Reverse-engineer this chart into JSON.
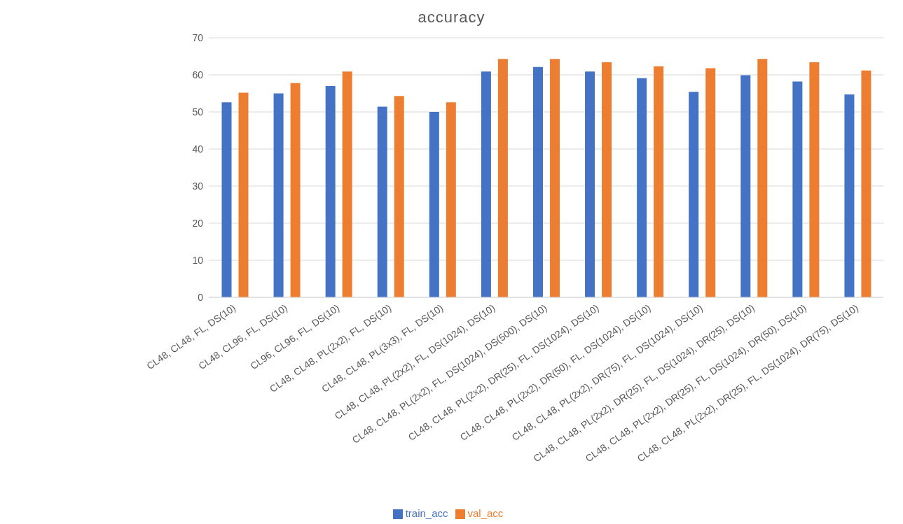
{
  "chart_data": {
    "type": "bar",
    "title": "accuracy",
    "categories": [
      "CL48, CL48, FL, DS(10)",
      "CL48, CL96, FL, DS(10)",
      "CL96, CL96, FL, DS(10)",
      "CL48, CL48, PL(2x2), FL, DS(10)",
      "CL48, CL48, PL(3x3), FL, DS(10)",
      "CL48, CL48, PL(2x2), FL, DS(1024), DS(10)",
      "CL48, CL48, PL(2x2), FL, DS(1024), DS(500), DS(10)",
      "CL48, CL48, PL(2x2), DR(25), FL, DS(1024), DS(10)",
      "CL48, CL48, PL(2x2), DR(50), FL, DS(1024), DS(10)",
      "CL48, CL48, PL(2x2), DR(75), FL, DS(1024), DS(10)",
      "CL48, CL48, PL(2x2), DR(25), FL, DS(1024), DR(25), DS(10)",
      "CL48, CL48, PL(2x2), DR(25), FL, DS(1024), DR(50), DS(10)",
      "CL48, CL48, PL(2x2), DR(25), FL, DS(1024), DR(75), DS(10)"
    ],
    "series": [
      {
        "name": "train_acc",
        "color": "#4472c4",
        "values": [
          52.6,
          55.0,
          57.0,
          51.4,
          50.0,
          60.9,
          62.1,
          60.9,
          59.1,
          55.4,
          59.9,
          58.2,
          54.7
        ]
      },
      {
        "name": "val_acc",
        "color": "#ed7d31",
        "values": [
          55.2,
          57.8,
          60.9,
          54.3,
          52.6,
          64.3,
          64.3,
          63.4,
          62.3,
          61.8,
          64.3,
          63.4,
          61.2
        ]
      }
    ],
    "ylim": [
      0,
      70
    ],
    "yticks": [
      0,
      10,
      20,
      30,
      40,
      50,
      60,
      70
    ],
    "grid": "y",
    "legend": "bottom"
  }
}
